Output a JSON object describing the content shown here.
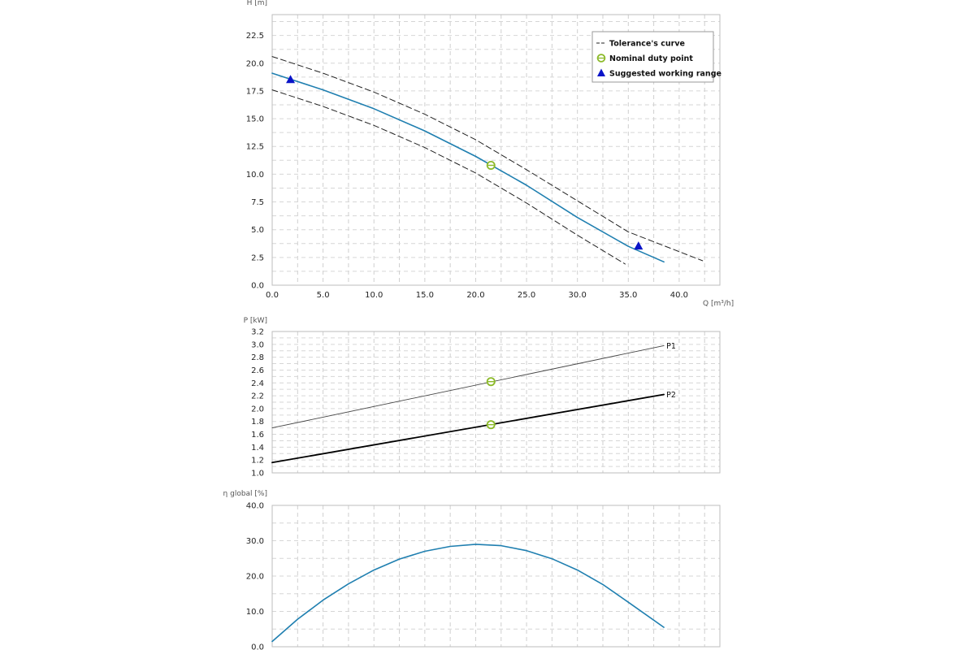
{
  "chart_data": [
    {
      "type": "line",
      "ylabel": "H [m]",
      "xlabel": "Q [m³/h]",
      "xlim": [
        0,
        44
      ],
      "ylim": [
        0,
        24.375
      ],
      "xticks": [
        "0.0",
        "5.0",
        "10.0",
        "15.0",
        "20.0",
        "25.0",
        "30.0",
        "35.0",
        "40.0"
      ],
      "yticks": [
        "0.0",
        "2.5",
        "5.0",
        "7.5",
        "10.0",
        "12.5",
        "15.0",
        "17.5",
        "20.0",
        "22.5"
      ],
      "grid": true,
      "legend": {
        "position": "top-right",
        "entries": [
          {
            "label": "Tolerance's curve",
            "marker": "dashed-line",
            "color": "#222222"
          },
          {
            "label": "Nominal duty point",
            "marker": "open-circle",
            "color": "#8cba2a"
          },
          {
            "label": "Suggested working range",
            "marker": "triangle",
            "color": "#0a14c8"
          }
        ]
      },
      "series": [
        {
          "role": "main",
          "color": "#1f7fb0",
          "x": [
            0,
            5,
            10,
            15,
            20,
            25,
            30,
            35,
            38.5
          ],
          "y": [
            19.1,
            17.6,
            15.9,
            13.9,
            11.6,
            9.0,
            6.1,
            3.5,
            2.1
          ]
        },
        {
          "role": "tolerance-upper",
          "color": "#222222",
          "dashed": true,
          "x": [
            0,
            5,
            10,
            15,
            20,
            25,
            30,
            35,
            42.3
          ],
          "y": [
            20.6,
            19.1,
            17.4,
            15.4,
            13.1,
            10.4,
            7.6,
            4.8,
            2.2
          ]
        },
        {
          "role": "tolerance-lower",
          "color": "#222222",
          "dashed": true,
          "x": [
            0,
            5,
            10,
            15,
            20,
            25,
            30,
            34.7
          ],
          "y": [
            17.6,
            16.1,
            14.4,
            12.4,
            10.1,
            7.4,
            4.5,
            1.9
          ]
        }
      ],
      "points": [
        {
          "kind": "duty",
          "x": 21.5,
          "y": 10.8
        },
        {
          "kind": "range",
          "x": 1.8,
          "y": 18.5
        },
        {
          "kind": "range",
          "x": 36.0,
          "y": 3.5
        }
      ]
    },
    {
      "type": "line",
      "ylabel": "P [kW]",
      "xlim": [
        0,
        44
      ],
      "ylim": [
        1.0,
        3.2
      ],
      "yticks": [
        "1.0",
        "1.2",
        "1.4",
        "1.6",
        "1.8",
        "2.0",
        "2.2",
        "2.4",
        "2.6",
        "2.8",
        "3.0",
        "3.2"
      ],
      "grid": true,
      "series": [
        {
          "name": "P1",
          "color": "#444444",
          "x": [
            0,
            38.5
          ],
          "y": [
            1.7,
            2.98
          ]
        },
        {
          "name": "P2",
          "color": "#000000",
          "x": [
            0,
            38.5
          ],
          "y": [
            1.16,
            2.22
          ]
        }
      ],
      "points": [
        {
          "kind": "duty",
          "x": 21.5,
          "y": 2.42
        },
        {
          "kind": "duty",
          "x": 21.5,
          "y": 1.75
        }
      ]
    },
    {
      "type": "line",
      "ylabel": "η global [%]",
      "xlim": [
        0,
        44
      ],
      "ylim": [
        0,
        40
      ],
      "yticks": [
        "0.0",
        "10.0",
        "20.0",
        "30.0",
        "40.0"
      ],
      "grid": true,
      "series": [
        {
          "role": "efficiency",
          "color": "#1f7fb0",
          "x": [
            0,
            2.5,
            5,
            7.5,
            10,
            12.5,
            15,
            17.5,
            20,
            22.5,
            25,
            27.5,
            30,
            32.5,
            35,
            38.5
          ],
          "y": [
            1.5,
            7.8,
            13.2,
            17.8,
            21.7,
            24.8,
            27.0,
            28.4,
            29.0,
            28.6,
            27.2,
            24.9,
            21.7,
            17.6,
            12.6,
            5.5
          ]
        }
      ]
    }
  ]
}
